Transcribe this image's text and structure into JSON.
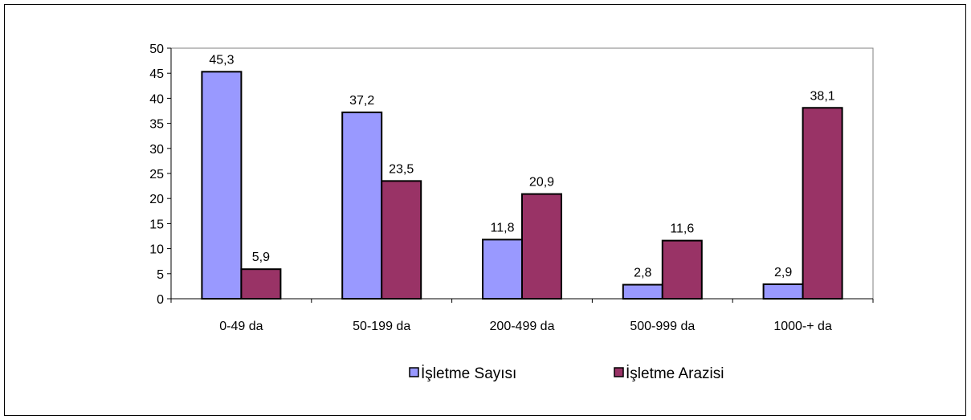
{
  "chart_data": {
    "type": "bar",
    "categories": [
      "0-49 da",
      "50-199 da",
      "200-499 da",
      "500-999 da",
      "1000-+ da"
    ],
    "series": [
      {
        "name": "İşletme Sayısı",
        "values": [
          45.3,
          37.2,
          11.8,
          2.8,
          2.9
        ],
        "color": "#9999ff"
      },
      {
        "name": "İşletme Arazisi",
        "values": [
          5.9,
          23.5,
          20.9,
          11.6,
          38.1
        ],
        "color": "#993366"
      }
    ],
    "ylim": [
      0,
      50
    ],
    "yticks": [
      0,
      5,
      10,
      15,
      20,
      25,
      30,
      35,
      40,
      45,
      50
    ],
    "data_labels": [
      [
        "45,3",
        "37,2",
        "11,8",
        "2,8",
        "2,9"
      ],
      [
        "5,9",
        "23,5",
        "20,9",
        "11,6",
        "38,1"
      ]
    ],
    "title": "",
    "xlabel": "",
    "ylabel": "",
    "grid": false,
    "legend_position": "bottom"
  }
}
